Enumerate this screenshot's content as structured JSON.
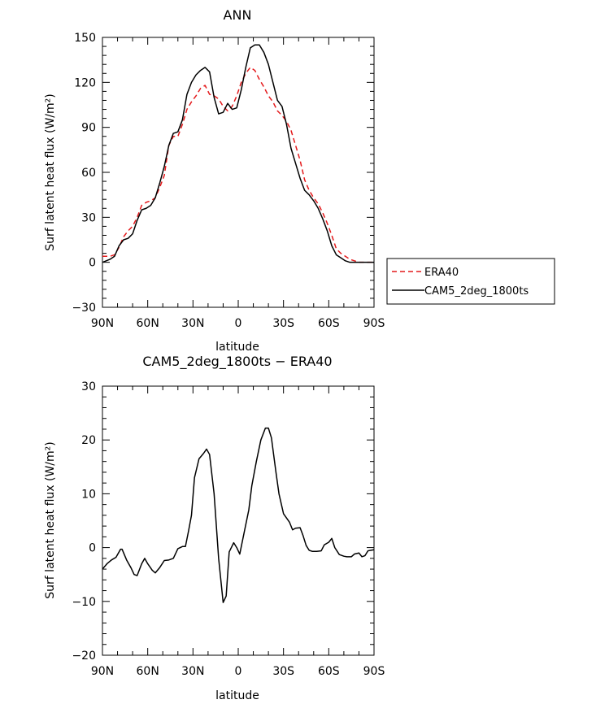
{
  "chart_data": [
    {
      "type": "line",
      "title": "ANN",
      "xlabel": "latitude",
      "ylabel": "Surf latent heat flux (W/m²)",
      "xlim": [
        90,
        -90
      ],
      "ylim": [
        -30,
        150
      ],
      "yticks": [
        -30,
        0,
        30,
        60,
        90,
        120,
        150
      ],
      "xticks": [
        {
          "value": 90,
          "label": "90N"
        },
        {
          "value": 60,
          "label": "60N"
        },
        {
          "value": 30,
          "label": "30N"
        },
        {
          "value": 0,
          "label": "0"
        },
        {
          "value": -30,
          "label": "30S"
        },
        {
          "value": -60,
          "label": "60S"
        },
        {
          "value": -90,
          "label": "90S"
        }
      ],
      "legend_position": "right",
      "series": [
        {
          "name": "ERA40",
          "color": "#e41a1c",
          "dash": "dashed",
          "points": [
            [
              90,
              4
            ],
            [
              85,
              4
            ],
            [
              82,
              5
            ],
            [
              79,
              10
            ],
            [
              76,
              17
            ],
            [
              73,
              21
            ],
            [
              70,
              24
            ],
            [
              67,
              30
            ],
            [
              64,
              38
            ],
            [
              61,
              40
            ],
            [
              58,
              41
            ],
            [
              55,
              43
            ],
            [
              52,
              50
            ],
            [
              49,
              58
            ],
            [
              46,
              78
            ],
            [
              43,
              84
            ],
            [
              40,
              84
            ],
            [
              37,
              92
            ],
            [
              34,
              102
            ],
            [
              31,
              107
            ],
            [
              28,
              111
            ],
            [
              25,
              116
            ],
            [
              22,
              118
            ],
            [
              19,
              112
            ],
            [
              16,
              111
            ],
            [
              13,
              109
            ],
            [
              10,
              104
            ],
            [
              7,
              101
            ],
            [
              4,
              104
            ],
            [
              1,
              111
            ],
            [
              -2,
              120
            ],
            [
              -5,
              126
            ],
            [
              -8,
              130
            ],
            [
              -11,
              128
            ],
            [
              -14,
              122
            ],
            [
              -17,
              117
            ],
            [
              -20,
              111
            ],
            [
              -23,
              107
            ],
            [
              -26,
              101
            ],
            [
              -29,
              98
            ],
            [
              -32,
              94
            ],
            [
              -35,
              88
            ],
            [
              -38,
              78
            ],
            [
              -41,
              68
            ],
            [
              -44,
              55
            ],
            [
              -47,
              48
            ],
            [
              -50,
              43
            ],
            [
              -53,
              39
            ],
            [
              -56,
              33
            ],
            [
              -59,
              26
            ],
            [
              -62,
              18
            ],
            [
              -65,
              9
            ],
            [
              -68,
              6
            ],
            [
              -71,
              4
            ],
            [
              -74,
              2
            ],
            [
              -77,
              1
            ],
            [
              -80,
              0
            ],
            [
              -85,
              0
            ],
            [
              -90,
              0
            ]
          ]
        },
        {
          "name": "CAM5_2deg_1800ts",
          "color": "#000000",
          "dash": "solid",
          "points": [
            [
              90,
              0
            ],
            [
              85,
              2
            ],
            [
              82,
              4
            ],
            [
              79,
              11
            ],
            [
              76,
              15
            ],
            [
              73,
              16
            ],
            [
              70,
              19
            ],
            [
              67,
              28
            ],
            [
              64,
              35
            ],
            [
              61,
              36
            ],
            [
              58,
              38
            ],
            [
              55,
              43
            ],
            [
              52,
              53
            ],
            [
              49,
              64
            ],
            [
              46,
              78
            ],
            [
              43,
              86
            ],
            [
              40,
              87
            ],
            [
              37,
              95
            ],
            [
              34,
              112
            ],
            [
              31,
              120
            ],
            [
              28,
              125
            ],
            [
              25,
              128
            ],
            [
              22,
              130
            ],
            [
              19,
              127
            ],
            [
              16,
              110
            ],
            [
              13,
              99
            ],
            [
              10,
              100
            ],
            [
              7,
              106
            ],
            [
              4,
              102
            ],
            [
              1,
              103
            ],
            [
              -2,
              115
            ],
            [
              -5,
              130
            ],
            [
              -8,
              143
            ],
            [
              -11,
              145
            ],
            [
              -14,
              145
            ],
            [
              -17,
              140
            ],
            [
              -20,
              132
            ],
            [
              -23,
              120
            ],
            [
              -26,
              108
            ],
            [
              -29,
              104
            ],
            [
              -32,
              92
            ],
            [
              -35,
              76
            ],
            [
              -38,
              66
            ],
            [
              -41,
              56
            ],
            [
              -44,
              48
            ],
            [
              -47,
              45
            ],
            [
              -50,
              41
            ],
            [
              -53,
              36
            ],
            [
              -56,
              29
            ],
            [
              -59,
              21
            ],
            [
              -62,
              11
            ],
            [
              -65,
              5
            ],
            [
              -68,
              3
            ],
            [
              -71,
              1
            ],
            [
              -74,
              0
            ],
            [
              -77,
              0
            ],
            [
              -80,
              0
            ],
            [
              -85,
              0
            ],
            [
              -90,
              0
            ]
          ]
        }
      ]
    },
    {
      "type": "line",
      "title": "CAM5_2deg_1800ts − ERA40",
      "xlabel": "latitude",
      "ylabel": "Surf latent heat flux (W/m²)",
      "xlim": [
        90,
        -90
      ],
      "ylim": [
        -20,
        30
      ],
      "yticks": [
        -20,
        -10,
        0,
        10,
        20,
        30
      ],
      "xticks": [
        {
          "value": 90,
          "label": "90N"
        },
        {
          "value": 60,
          "label": "60N"
        },
        {
          "value": 30,
          "label": "30N"
        },
        {
          "value": 0,
          "label": "0"
        },
        {
          "value": -30,
          "label": "30S"
        },
        {
          "value": -60,
          "label": "60S"
        },
        {
          "value": -90,
          "label": "90S"
        }
      ],
      "series": [
        {
          "name": "",
          "color": "#000000",
          "dash": "solid",
          "points": [
            [
              90,
              -4
            ],
            [
              87,
              -3
            ],
            [
              84,
              -2.3
            ],
            [
              81,
              -1.8
            ],
            [
              78,
              -0.3
            ],
            [
              77,
              -0.3
            ],
            [
              74,
              -2.3
            ],
            [
              71,
              -3.8
            ],
            [
              69,
              -5
            ],
            [
              67,
              -5.2
            ],
            [
              64,
              -3
            ],
            [
              62,
              -2
            ],
            [
              60,
              -3
            ],
            [
              57,
              -4.2
            ],
            [
              55,
              -4.7
            ],
            [
              52,
              -3.7
            ],
            [
              49,
              -2.4
            ],
            [
              46,
              -2.3
            ],
            [
              43,
              -2
            ],
            [
              40,
              -0.2
            ],
            [
              37,
              0.2
            ],
            [
              35,
              0.2
            ],
            [
              33,
              3
            ],
            [
              31,
              6
            ],
            [
              29,
              13
            ],
            [
              26,
              16.5
            ],
            [
              23,
              17.5
            ],
            [
              21,
              18.3
            ],
            [
              19,
              17.3
            ],
            [
              16,
              10
            ],
            [
              13,
              -2
            ],
            [
              10,
              -10.2
            ],
            [
              8,
              -9
            ],
            [
              6,
              -0.8
            ],
            [
              3,
              0.9
            ],
            [
              1,
              0
            ],
            [
              -1,
              -1.2
            ],
            [
              -4,
              2.9
            ],
            [
              -7,
              7
            ],
            [
              -9,
              11.5
            ],
            [
              -12,
              16
            ],
            [
              -15,
              20
            ],
            [
              -18,
              22.2
            ],
            [
              -20,
              22.2
            ],
            [
              -22,
              20.4
            ],
            [
              -25,
              14
            ],
            [
              -27,
              10
            ],
            [
              -30,
              6.3
            ],
            [
              -32,
              5.5
            ],
            [
              -34,
              4.7
            ],
            [
              -36,
              3.3
            ],
            [
              -38,
              3.6
            ],
            [
              -41,
              3.7
            ],
            [
              -43,
              2.2
            ],
            [
              -45,
              0.4
            ],
            [
              -47,
              -0.5
            ],
            [
              -49,
              -0.7
            ],
            [
              -52,
              -0.7
            ],
            [
              -55,
              -0.6
            ],
            [
              -57,
              0.5
            ],
            [
              -60,
              1
            ],
            [
              -62,
              1.7
            ],
            [
              -64,
              0
            ],
            [
              -67,
              -1.3
            ],
            [
              -70,
              -1.6
            ],
            [
              -72,
              -1.7
            ],
            [
              -75,
              -1.7
            ],
            [
              -77,
              -1.2
            ],
            [
              -80,
              -1
            ],
            [
              -82,
              -1.7
            ],
            [
              -84,
              -1.5
            ],
            [
              -86,
              -0.6
            ],
            [
              -88,
              -0.5
            ],
            [
              -90,
              -0.4
            ]
          ]
        }
      ]
    }
  ]
}
